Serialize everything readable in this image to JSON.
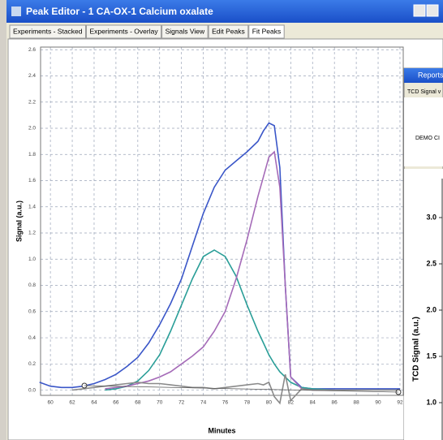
{
  "window": {
    "title": "Peak Editor - 1 CA-OX-1 Calcium oxalate"
  },
  "tabs": [
    "Experiments - Stacked",
    "Experiments - Overlay",
    "Signals View",
    "Edit Peaks",
    "Fit Peaks"
  ],
  "chart_data": {
    "type": "line",
    "x_label": "Minutes",
    "y_label": "Signal (a.u.)",
    "x": [
      59,
      60,
      61,
      62,
      63,
      64,
      65,
      66,
      67,
      68,
      69,
      70,
      71,
      72,
      73,
      74,
      75,
      76,
      77,
      78,
      79,
      79.5,
      80,
      80.5,
      81,
      81.5,
      82,
      83,
      84,
      86,
      88,
      90,
      92
    ],
    "series": [
      {
        "color": "#3a56c8",
        "values": [
          0.06,
          0.03,
          0.02,
          0.02,
          0.03,
          0.05,
          0.08,
          0.12,
          0.18,
          0.25,
          0.36,
          0.5,
          0.66,
          0.85,
          1.1,
          1.35,
          1.55,
          1.68,
          1.75,
          1.82,
          1.9,
          1.98,
          2.04,
          2.02,
          1.7,
          0.8,
          0.1,
          0.02,
          0.01,
          0.01,
          0.01,
          0.01,
          0.01
        ]
      },
      {
        "color": "#2a9e98",
        "values": [
          null,
          null,
          null,
          null,
          null,
          null,
          0.0,
          0.01,
          0.03,
          0.07,
          0.15,
          0.27,
          0.45,
          0.65,
          0.85,
          1.02,
          1.07,
          1.02,
          0.87,
          0.65,
          0.45,
          0.36,
          0.27,
          0.2,
          0.14,
          0.1,
          0.06,
          0.02,
          0.01,
          0.0,
          null,
          null,
          null
        ]
      },
      {
        "color": "#a56bb8",
        "values": [
          null,
          null,
          null,
          null,
          null,
          null,
          0.01,
          0.02,
          0.03,
          0.05,
          0.07,
          0.1,
          0.14,
          0.2,
          0.26,
          0.33,
          0.45,
          0.6,
          0.85,
          1.15,
          1.48,
          1.63,
          1.78,
          1.82,
          1.55,
          0.8,
          0.1,
          0.01,
          0.0,
          0.0,
          null,
          null,
          null
        ]
      },
      {
        "color": "#8a8a8a",
        "values": [
          null,
          null,
          null,
          0.0,
          0.01,
          0.02,
          0.03,
          0.04,
          0.05,
          0.06,
          0.05,
          0.05,
          0.04,
          0.03,
          0.02,
          0.02,
          0.01,
          0.02,
          0.03,
          0.04,
          0.05,
          0.04,
          0.06,
          -0.05,
          -0.1,
          0.12,
          -0.08,
          0.01,
          0.0,
          0.0,
          0.0,
          0.0,
          0.0
        ]
      }
    ],
    "xlim": [
      59.1,
      92.3
    ],
    "ylim": [
      -0.04,
      2.62
    ],
    "xticks": [
      60,
      62,
      64,
      66,
      68,
      70,
      72,
      74,
      76,
      78,
      80,
      82,
      84,
      86,
      88,
      90,
      92
    ],
    "yticks": [
      {
        "value": 0,
        "label": "0.0"
      },
      0.2,
      0.4,
      0.6,
      0.8,
      {
        "value": 1,
        "label": "1.0"
      },
      1.2,
      1.4,
      1.6,
      1.8,
      {
        "value": 2,
        "label": "2.0"
      },
      2.2,
      2.4,
      2.6
    ],
    "grid": true
  },
  "report_window": {
    "title": "Reports",
    "subtitle": "TCD Signal v",
    "demo": "DEMO CI",
    "y_label": "TCD Signal (a.u.)",
    "tick_labels": [
      "3.0",
      "2.5",
      "2.0",
      "1.5",
      "1.0"
    ]
  }
}
